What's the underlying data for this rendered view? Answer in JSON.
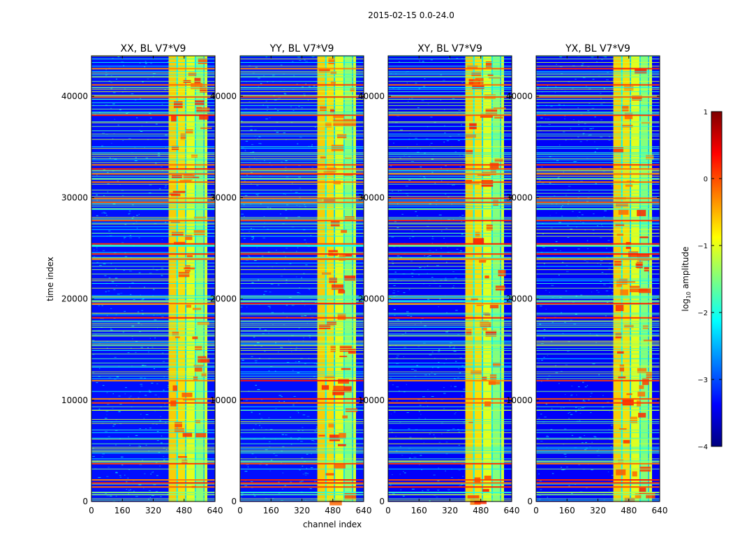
{
  "figure": {
    "suptitle": "2015-02-15 0.0-24.0",
    "xlabel": "channel index",
    "ylabel": "time index"
  },
  "colorbar": {
    "label_prefix": "log",
    "label_sub": "10",
    "label_suffix": " amplitude",
    "range": [
      -4,
      1
    ],
    "ticks": [
      "1",
      "0",
      "−1",
      "−2",
      "−3",
      "−4"
    ],
    "tick_values": [
      1,
      0,
      -1,
      -2,
      -3,
      -4
    ],
    "stops": [
      "#00007f",
      "#0000ff",
      "#007fff",
      "#00ffff",
      "#7fff7f",
      "#ffff00",
      "#ff7f00",
      "#ff0000",
      "#7f0000"
    ]
  },
  "chart_data": [
    {
      "type": "heatmap",
      "title": "XX, BL V7*V9",
      "xlim": [
        0,
        640
      ],
      "ylim": [
        0,
        44000
      ],
      "xticks": [
        0,
        160,
        320,
        480,
        640
      ],
      "yticks": [
        0,
        10000,
        20000,
        30000,
        40000
      ],
      "rfi_channel_range": [
        400,
        600
      ],
      "background_log_amplitude": -3.3,
      "rfi_band_log_amplitude": -1.2
    },
    {
      "type": "heatmap",
      "title": "YY, BL V7*V9",
      "xlim": [
        0,
        640
      ],
      "ylim": [
        0,
        44000
      ],
      "xticks": [
        0,
        160,
        320,
        480,
        640
      ],
      "yticks": [
        0,
        10000,
        20000,
        30000,
        40000
      ],
      "rfi_channel_range": [
        400,
        600
      ],
      "background_log_amplitude": -3.3,
      "rfi_band_log_amplitude": -1.2
    },
    {
      "type": "heatmap",
      "title": "XY, BL V7*V9",
      "xlim": [
        0,
        640
      ],
      "ylim": [
        0,
        44000
      ],
      "xticks": [
        0,
        160,
        320,
        480,
        640
      ],
      "yticks": [
        0,
        10000,
        20000,
        30000,
        40000
      ],
      "rfi_channel_range": [
        400,
        600
      ],
      "background_log_amplitude": -3.4,
      "rfi_band_log_amplitude": -1.3
    },
    {
      "type": "heatmap",
      "title": "YX, BL V7*V9",
      "xlim": [
        0,
        640
      ],
      "ylim": [
        0,
        44000
      ],
      "xticks": [
        0,
        160,
        320,
        480,
        640
      ],
      "yticks": [
        0,
        10000,
        20000,
        30000,
        40000
      ],
      "rfi_channel_range": [
        400,
        600
      ],
      "background_log_amplitude": -3.4,
      "rfi_band_log_amplitude": -1.3
    }
  ]
}
